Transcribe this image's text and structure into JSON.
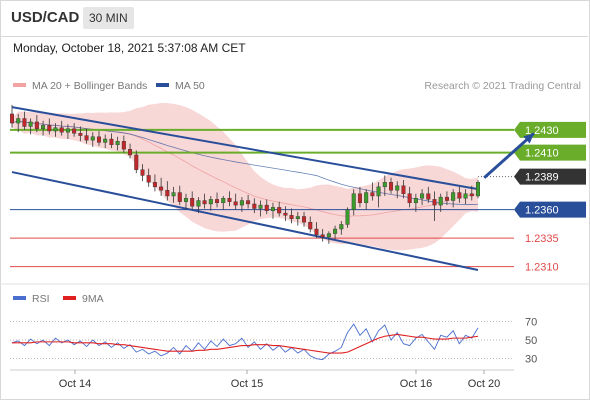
{
  "header": {
    "symbol": "USD/CAD",
    "timeframe": "30 MIN"
  },
  "datetime": "Monday, October 18, 2021 5:37:08 AM CET",
  "legend": {
    "ma_bb": "MA 20 + Bollinger Bands",
    "ma50": "MA 50",
    "research": "Research © 2021 Trading Central",
    "rsi": "RSI",
    "ma9": "9MA"
  },
  "colors": {
    "green": "#6aad2a",
    "blue": "#2a4f9a",
    "red": "#e24a4a",
    "band": "#f6c9c9",
    "bull": "#3b9b2b",
    "bear": "#c0282c",
    "current": "#333333"
  },
  "chart_data": [
    {
      "type": "candlestick",
      "title": "",
      "y_range": [
        1.23,
        1.2458
      ],
      "x_ticks": [
        "Oct 14",
        "Oct 15",
        "Oct 16",
        "Oct 20"
      ],
      "levels": [
        {
          "value": 1.243,
          "label": "1.2430",
          "color": "#6aad2a",
          "style": "resistance"
        },
        {
          "value": 1.241,
          "label": "1.2410",
          "color": "#6aad2a",
          "style": "resistance"
        },
        {
          "value": 1.2389,
          "label": "1.2389",
          "color": "#333333",
          "style": "current"
        },
        {
          "value": 1.236,
          "label": "1.2360",
          "color": "#2a4f9a",
          "style": "pivot"
        },
        {
          "value": 1.2335,
          "label": "1.2335",
          "color": "#e24a4a",
          "style": "support"
        },
        {
          "value": 1.231,
          "label": "1.2310",
          "color": "#e24a4a",
          "style": "support"
        }
      ],
      "trend_channel": [
        {
          "name": "upper",
          "from": {
            "x": 0,
            "y": 1.245
          },
          "to": {
            "x": 75,
            "y": 1.2378
          }
        },
        {
          "name": "lower",
          "from": {
            "x": 0,
            "y": 1.2393
          },
          "to": {
            "x": 75,
            "y": 1.2307
          }
        }
      ],
      "projection_arrow": {
        "from": {
          "x": 76,
          "y": 1.2388
        },
        "to": {
          "x": 84,
          "y": 1.2427
        }
      },
      "ohlc": [
        [
          1.2444,
          1.2452,
          1.2432,
          1.2436
        ],
        [
          1.2436,
          1.2444,
          1.2428,
          1.244
        ],
        [
          1.244,
          1.2446,
          1.243,
          1.2433
        ],
        [
          1.2433,
          1.244,
          1.2426,
          1.2437
        ],
        [
          1.2437,
          1.2443,
          1.2428,
          1.2431
        ],
        [
          1.2431,
          1.2438,
          1.2425,
          1.2434
        ],
        [
          1.2434,
          1.244,
          1.2426,
          1.2429
        ],
        [
          1.2429,
          1.2436,
          1.2424,
          1.2432
        ],
        [
          1.2432,
          1.2438,
          1.2425,
          1.2428
        ],
        [
          1.2428,
          1.2435,
          1.2422,
          1.2431
        ],
        [
          1.2431,
          1.2436,
          1.2424,
          1.2427
        ],
        [
          1.2427,
          1.2433,
          1.242,
          1.2425
        ],
        [
          1.2425,
          1.2431,
          1.2418,
          1.2421
        ],
        [
          1.2421,
          1.2428,
          1.2415,
          1.2424
        ],
        [
          1.2424,
          1.2429,
          1.2416,
          1.2419
        ],
        [
          1.2419,
          1.2426,
          1.2414,
          1.2422
        ],
        [
          1.2422,
          1.2427,
          1.2414,
          1.2417
        ],
        [
          1.2417,
          1.2424,
          1.2412,
          1.242
        ],
        [
          1.242,
          1.2425,
          1.241,
          1.2413
        ],
        [
          1.2413,
          1.2418,
          1.2405,
          1.2408
        ],
        [
          1.2408,
          1.2412,
          1.2392,
          1.2395
        ],
        [
          1.2395,
          1.24,
          1.2385,
          1.239
        ],
        [
          1.239,
          1.2396,
          1.238,
          1.2384
        ],
        [
          1.2384,
          1.2391,
          1.2376,
          1.238
        ],
        [
          1.238,
          1.2388,
          1.2372,
          1.2377
        ],
        [
          1.2377,
          1.2385,
          1.2368,
          1.2372
        ],
        [
          1.2372,
          1.238,
          1.2366,
          1.2375
        ],
        [
          1.2375,
          1.2381,
          1.2364,
          1.2367
        ],
        [
          1.2367,
          1.2374,
          1.236,
          1.237
        ],
        [
          1.237,
          1.2376,
          1.236,
          1.2363
        ],
        [
          1.2363,
          1.2371,
          1.2357,
          1.2368
        ],
        [
          1.2368,
          1.2374,
          1.2361,
          1.2365
        ],
        [
          1.2365,
          1.2372,
          1.2359,
          1.2369
        ],
        [
          1.2369,
          1.2375,
          1.2362,
          1.2366
        ],
        [
          1.2366,
          1.2372,
          1.236,
          1.237
        ],
        [
          1.237,
          1.2376,
          1.2363,
          1.2367
        ],
        [
          1.2367,
          1.2374,
          1.236,
          1.2364
        ],
        [
          1.2364,
          1.2371,
          1.2358,
          1.2368
        ],
        [
          1.2368,
          1.2373,
          1.2361,
          1.2365
        ],
        [
          1.2365,
          1.237,
          1.2357,
          1.2361
        ],
        [
          1.2361,
          1.2368,
          1.2354,
          1.2364
        ],
        [
          1.2364,
          1.2369,
          1.2356,
          1.2359
        ],
        [
          1.2359,
          1.2366,
          1.2352,
          1.2362
        ],
        [
          1.2362,
          1.2367,
          1.2354,
          1.2357
        ],
        [
          1.2357,
          1.2363,
          1.235,
          1.2355
        ],
        [
          1.2355,
          1.2361,
          1.2348,
          1.2352
        ],
        [
          1.2352,
          1.2358,
          1.2346,
          1.2354
        ],
        [
          1.2354,
          1.2358,
          1.2345,
          1.2349
        ],
        [
          1.2349,
          1.2354,
          1.234,
          1.2343
        ],
        [
          1.2343,
          1.2349,
          1.2335,
          1.2338
        ],
        [
          1.2338,
          1.2343,
          1.2332,
          1.2336
        ],
        [
          1.2336,
          1.2341,
          1.233,
          1.2339
        ],
        [
          1.2339,
          1.2346,
          1.2334,
          1.2343
        ],
        [
          1.2343,
          1.235,
          1.2338,
          1.2347
        ],
        [
          1.2347,
          1.2362,
          1.2344,
          1.236
        ],
        [
          1.236,
          1.2378,
          1.2355,
          1.2374
        ],
        [
          1.2374,
          1.238,
          1.2362,
          1.2366
        ],
        [
          1.2366,
          1.2378,
          1.236,
          1.2375
        ],
        [
          1.2375,
          1.2384,
          1.2368,
          1.2372
        ],
        [
          1.2372,
          1.2384,
          1.2362,
          1.238
        ],
        [
          1.238,
          1.239,
          1.2372,
          1.2384
        ],
        [
          1.2384,
          1.2388,
          1.2374,
          1.2377
        ],
        [
          1.2377,
          1.2385,
          1.237,
          1.2381
        ],
        [
          1.2381,
          1.2386,
          1.237,
          1.2374
        ],
        [
          1.2374,
          1.238,
          1.2362,
          1.2366
        ],
        [
          1.2366,
          1.2374,
          1.2358,
          1.237
        ],
        [
          1.237,
          1.2378,
          1.2364,
          1.2374
        ],
        [
          1.2374,
          1.238,
          1.2366,
          1.2369
        ],
        [
          1.2369,
          1.2376,
          1.235,
          1.2364
        ],
        [
          1.2364,
          1.2374,
          1.2358,
          1.2371
        ],
        [
          1.2371,
          1.2376,
          1.2364,
          1.2368
        ],
        [
          1.2368,
          1.2378,
          1.2362,
          1.2375
        ],
        [
          1.2375,
          1.238,
          1.2366,
          1.237
        ],
        [
          1.237,
          1.2378,
          1.2365,
          1.2374
        ],
        [
          1.2374,
          1.2381,
          1.2368,
          1.2372
        ],
        [
          1.2372,
          1.2386,
          1.237,
          1.2384
        ]
      ]
    },
    {
      "type": "line",
      "title": "",
      "y_ticks": [
        70,
        50,
        30
      ],
      "ylim": [
        20,
        80
      ],
      "series": [
        {
          "name": "RSI",
          "color": "#4a6fcf",
          "values": [
            47,
            49,
            44,
            51,
            46,
            50,
            44,
            52,
            47,
            50,
            45,
            49,
            43,
            50,
            44,
            48,
            42,
            47,
            41,
            45,
            37,
            40,
            35,
            38,
            33,
            36,
            42,
            35,
            44,
            38,
            47,
            40,
            49,
            43,
            51,
            44,
            46,
            52,
            42,
            48,
            40,
            46,
            39,
            44,
            37,
            42,
            36,
            40,
            33,
            30,
            29,
            35,
            38,
            42,
            58,
            67,
            55,
            62,
            48,
            60,
            66,
            50,
            58,
            46,
            44,
            52,
            56,
            48,
            40,
            55,
            53,
            60,
            46,
            55,
            52,
            63
          ]
        },
        {
          "name": "9MA",
          "color": "#e02020",
          "values": [
            47,
            47,
            47,
            47,
            48,
            48,
            48,
            48,
            48,
            48,
            47,
            47,
            47,
            47,
            46,
            46,
            46,
            45,
            45,
            44,
            43,
            42,
            41,
            40,
            39,
            38,
            38,
            38,
            38,
            38,
            39,
            39,
            40,
            40,
            41,
            42,
            43,
            44,
            44,
            45,
            45,
            45,
            44,
            44,
            43,
            42,
            41,
            40,
            39,
            38,
            37,
            36,
            36,
            36,
            37,
            40,
            43,
            46,
            49,
            52,
            54,
            55,
            56,
            55,
            54,
            53,
            53,
            52,
            51,
            51,
            51,
            52,
            52,
            52,
            53,
            54
          ]
        }
      ]
    }
  ]
}
